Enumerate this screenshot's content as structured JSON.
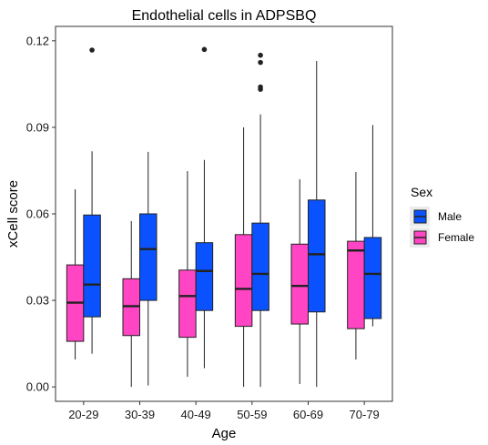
{
  "chart_data": {
    "type": "boxplot",
    "title": "Endothelial cells in ADPSBQ",
    "xlabel": "Age",
    "ylabel": "xCell score",
    "ylim": [
      -0.005,
      0.125
    ],
    "yticks": [
      0.0,
      0.03,
      0.06,
      0.09,
      0.12
    ],
    "ytick_labels": [
      "0.00",
      "0.03",
      "0.06",
      "0.09",
      "0.12"
    ],
    "categories": [
      "20-29",
      "30-39",
      "40-49",
      "50-59",
      "60-69",
      "70-79"
    ],
    "grid": false,
    "legend": {
      "title": "Sex",
      "placement": "right",
      "entries": [
        {
          "label": "Male",
          "color": "#0a52ff"
        },
        {
          "label": "Female",
          "color": "#ff45c3"
        }
      ]
    },
    "series": [
      {
        "name": "Female",
        "color": "#ff45c3",
        "boxes": [
          {
            "min": 0.0095,
            "q1": 0.0158,
            "median": 0.0292,
            "q3": 0.0423,
            "max": 0.0685,
            "outliers": []
          },
          {
            "min": 0.0,
            "q1": 0.0178,
            "median": 0.028,
            "q3": 0.0375,
            "max": 0.0575,
            "outliers": []
          },
          {
            "min": 0.0035,
            "q1": 0.0172,
            "median": 0.0315,
            "q3": 0.0405,
            "max": 0.0748,
            "outliers": []
          },
          {
            "min": 0.0,
            "q1": 0.021,
            "median": 0.034,
            "q3": 0.0528,
            "max": 0.09,
            "outliers": []
          },
          {
            "min": 0.001,
            "q1": 0.0218,
            "median": 0.035,
            "q3": 0.0495,
            "max": 0.072,
            "outliers": []
          },
          {
            "min": 0.0095,
            "q1": 0.0202,
            "median": 0.0473,
            "q3": 0.0505,
            "max": 0.0745,
            "outliers": []
          }
        ]
      },
      {
        "name": "Male",
        "color": "#0a52ff",
        "boxes": [
          {
            "min": 0.0115,
            "q1": 0.0243,
            "median": 0.0355,
            "q3": 0.0596,
            "max": 0.0817,
            "outliers": [
              0.1168
            ]
          },
          {
            "min": 0.0005,
            "q1": 0.03,
            "median": 0.0478,
            "q3": 0.06,
            "max": 0.0815,
            "outliers": []
          },
          {
            "min": 0.0065,
            "q1": 0.0265,
            "median": 0.0402,
            "q3": 0.05,
            "max": 0.0787,
            "outliers": [
              0.117
            ]
          },
          {
            "min": 0.0,
            "q1": 0.0265,
            "median": 0.0392,
            "q3": 0.0568,
            "max": 0.0945,
            "outliers": [
              0.115,
              0.1125,
              0.104,
              0.1032
            ]
          },
          {
            "min": 0.0,
            "q1": 0.026,
            "median": 0.046,
            "q3": 0.0648,
            "max": 0.113,
            "outliers": []
          },
          {
            "min": 0.021,
            "q1": 0.0237,
            "median": 0.0392,
            "q3": 0.0518,
            "max": 0.0908,
            "outliers": []
          }
        ]
      }
    ]
  }
}
